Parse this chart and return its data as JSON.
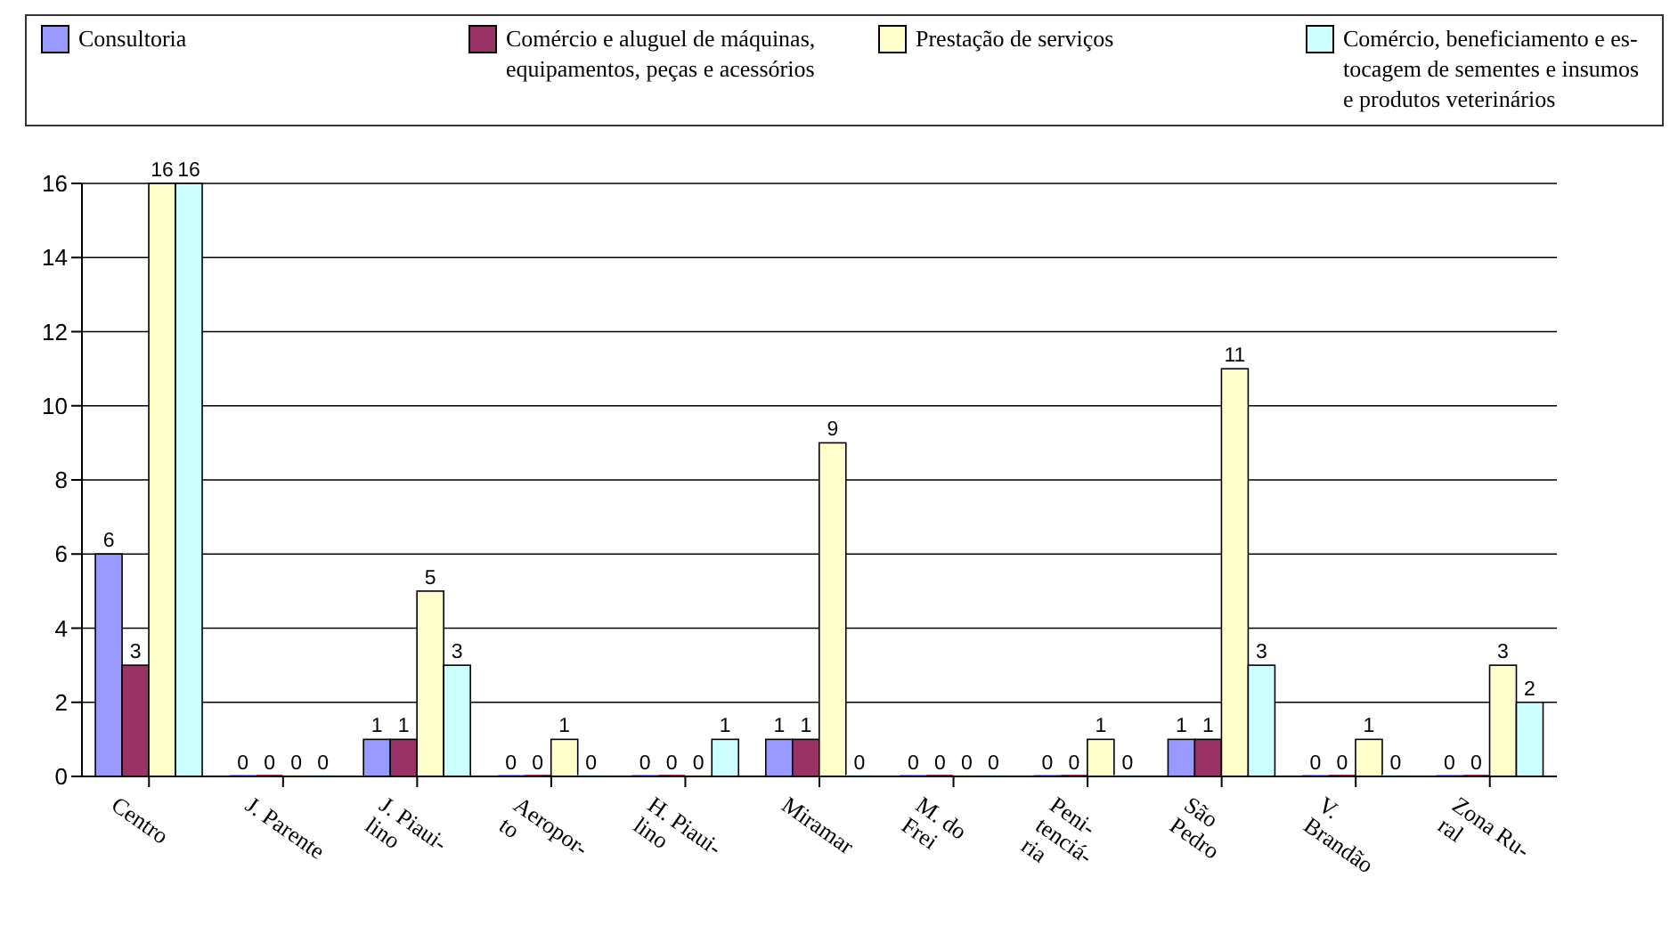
{
  "chart_data": {
    "type": "bar",
    "categories": [
      "Centro",
      "J. Parente",
      "J. Piaui-\nlino",
      "Aeropor-\nto",
      "H. Piaui-\nlino",
      "Miramar",
      "M. do\nFrei",
      "Peni-\ntenciá-\nria",
      "São\nPedro",
      "V.\nBrandão",
      "Zona Ru-\nral"
    ],
    "series": [
      {
        "name": "Consultoria",
        "color": "#9999ff",
        "values": [
          6,
          0,
          1,
          0,
          0,
          1,
          0,
          0,
          1,
          0,
          0
        ]
      },
      {
        "name": "Comércio e aluguel de máquinas,\nequipamentos, peças e acessórios",
        "color": "#993366",
        "values": [
          3,
          0,
          1,
          0,
          0,
          1,
          0,
          0,
          1,
          0,
          0
        ]
      },
      {
        "name": "Prestação de serviços",
        "color": "#ffffcc",
        "values": [
          16,
          0,
          5,
          1,
          0,
          9,
          0,
          1,
          11,
          1,
          3
        ]
      },
      {
        "name": "Comércio, beneficiamento e es-\ntocagem de sementes e insumos\ne produtos veterinários",
        "color": "#ccffff",
        "values": [
          16,
          0,
          3,
          0,
          1,
          0,
          0,
          0,
          3,
          0,
          2
        ]
      }
    ],
    "ylim": [
      0,
      16
    ],
    "yticks": [
      0,
      2,
      4,
      6,
      8,
      10,
      12,
      14,
      16
    ],
    "grid": "y",
    "legend": "top",
    "data_labels": true
  }
}
